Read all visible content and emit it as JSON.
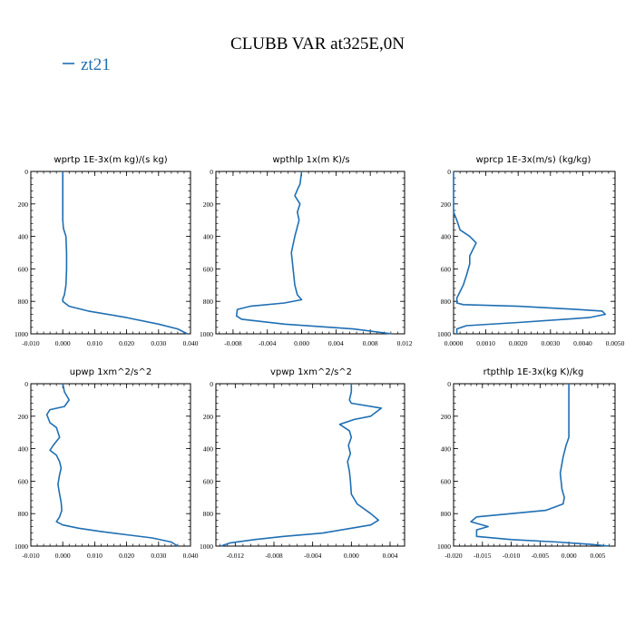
{
  "title": "CLUBB VAR at325E,0N",
  "legend": {
    "label": "zt21",
    "color": "#1f6fb3"
  },
  "chart_data": [
    {
      "type": "line",
      "title": "wprtp  1E-3x(m kg)/(s kg)",
      "xlim": [
        -0.01,
        0.04
      ],
      "ylim": [
        1000,
        0
      ],
      "xticks": [
        -0.01,
        0.0,
        0.01,
        0.02,
        0.03,
        0.04
      ],
      "xticklabels": [
        "-0.010",
        "0.000",
        "0.010",
        "0.020",
        "0.030",
        "0.040"
      ],
      "yticks": [
        0,
        200,
        400,
        600,
        800,
        1000
      ],
      "yticklabels": [
        "0",
        "200",
        "400",
        "600",
        "800",
        "1000"
      ],
      "series": [
        {
          "name": "zt21",
          "x": [
            0.0,
            0.0,
            0.0,
            0.0002,
            0.001,
            0.0012,
            0.0012,
            0.001,
            0.0005,
            0.0,
            0.0,
            0.002,
            0.008,
            0.02,
            0.03,
            0.036,
            0.039
          ],
          "y": [
            0,
            200,
            300,
            350,
            400,
            500,
            600,
            700,
            760,
            785,
            800,
            830,
            860,
            900,
            940,
            970,
            1000
          ]
        }
      ]
    },
    {
      "type": "line",
      "title": "wpthlp  1x(m K)/s",
      "xlim": [
        -0.01,
        0.012
      ],
      "ylim": [
        1000,
        0
      ],
      "xticks": [
        -0.008,
        -0.004,
        0.0,
        0.004,
        0.008,
        0.012
      ],
      "xticklabels": [
        "-0.008",
        "-0.004",
        "0.000",
        "0.004",
        "0.008",
        "0.012"
      ],
      "yticks": [
        0,
        200,
        400,
        600,
        800,
        1000
      ],
      "yticklabels": [
        "0",
        "200",
        "400",
        "600",
        "800",
        "1000"
      ],
      "series": [
        {
          "name": "zt21",
          "x": [
            0.0,
            -0.0002,
            -0.0004,
            -0.0008,
            -0.0002,
            -0.0005,
            -0.0003,
            -0.0008,
            -0.0012,
            -0.001,
            -0.0008,
            -0.0005,
            0.0,
            -0.002,
            -0.006,
            -0.0075,
            -0.0076,
            -0.007,
            -0.002,
            0.006,
            0.0105
          ],
          "y": [
            0,
            80,
            100,
            150,
            200,
            250,
            300,
            400,
            500,
            600,
            700,
            760,
            790,
            810,
            830,
            850,
            890,
            910,
            940,
            970,
            1000
          ]
        }
      ]
    },
    {
      "type": "line",
      "title": "wprcp  1E-3x(m/s) (kg/kg)",
      "xlim": [
        0.0,
        0.005
      ],
      "ylim": [
        1000,
        0
      ],
      "xticks": [
        0.0,
        0.001,
        0.002,
        0.003,
        0.004,
        0.005
      ],
      "xticklabels": [
        "0.0000",
        "0.0010",
        "0.0020",
        "0.0030",
        "0.0040",
        "0.0050"
      ],
      "yticks": [
        0,
        200,
        400,
        600,
        800,
        1000
      ],
      "yticklabels": [
        "0",
        "200",
        "400",
        "600",
        "800",
        "1000"
      ],
      "series": [
        {
          "name": "zt21",
          "x": [
            0.0,
            0.0,
            0.0,
            0.0001,
            0.0002,
            0.0005,
            0.0007,
            0.0006,
            0.0005,
            0.0005,
            0.0004,
            0.0003,
            0.0001,
            0.0001,
            0.0003,
            0.002,
            0.0038,
            0.0046,
            0.0047,
            0.0042,
            0.002,
            0.0004,
            0.0001,
            0.0001
          ],
          "y": [
            0,
            200,
            250,
            300,
            360,
            400,
            440,
            480,
            520,
            570,
            640,
            700,
            780,
            810,
            820,
            830,
            850,
            860,
            880,
            900,
            930,
            950,
            970,
            1000
          ]
        }
      ]
    },
    {
      "type": "line",
      "title": "upwp   1xm^2/s^2",
      "xlim": [
        -0.01,
        0.04
      ],
      "ylim": [
        1000,
        0
      ],
      "xticks": [
        -0.01,
        0.0,
        0.01,
        0.02,
        0.03,
        0.04
      ],
      "xticklabels": [
        "-0.010",
        "0.000",
        "0.010",
        "0.020",
        "0.030",
        "0.040"
      ],
      "yticks": [
        0,
        200,
        400,
        600,
        800,
        1000
      ],
      "yticklabels": [
        "0",
        "200",
        "400",
        "600",
        "800",
        "1000"
      ],
      "series": [
        {
          "name": "zt21",
          "x": [
            0.0,
            0.0005,
            0.002,
            0.0005,
            -0.004,
            -0.005,
            -0.004,
            -0.002,
            -0.001,
            -0.003,
            -0.004,
            -0.002,
            -0.001,
            -0.0005,
            -0.001,
            -0.0015,
            -0.001,
            -0.0005,
            -0.0003,
            -0.001,
            -0.002,
            0.0,
            0.005,
            0.012,
            0.02,
            0.028,
            0.034,
            0.036
          ],
          "y": [
            0,
            50,
            100,
            140,
            160,
            190,
            240,
            270,
            330,
            380,
            410,
            440,
            480,
            520,
            560,
            620,
            680,
            730,
            780,
            820,
            850,
            870,
            890,
            910,
            930,
            950,
            975,
            1000
          ]
        }
      ]
    },
    {
      "type": "line",
      "title": "vpwp   1xm^2/s^2",
      "xlim": [
        -0.014,
        0.0055
      ],
      "ylim": [
        1000,
        0
      ],
      "xticks": [
        -0.012,
        -0.008,
        -0.004,
        0.0,
        0.004
      ],
      "xticklabels": [
        "-0.012",
        "-0.008",
        "-0.004",
        "0.000",
        "0.004"
      ],
      "yticks": [
        0,
        200,
        400,
        600,
        800,
        1000
      ],
      "yticklabels": [
        "0",
        "200",
        "400",
        "600",
        "800",
        "1000"
      ],
      "series": [
        {
          "name": "zt21",
          "x": [
            0.0,
            0.0,
            -0.0002,
            0.0,
            0.0031,
            0.002,
            0.0003,
            -0.0012,
            -0.0002,
            0.0,
            -0.0003,
            -0.0001,
            -0.0004,
            -0.0002,
            -0.0001,
            0.0,
            0.0006,
            0.002,
            0.0028,
            0.002,
            0.0,
            -0.003,
            -0.007,
            -0.01,
            -0.0125,
            -0.0135
          ],
          "y": [
            0,
            50,
            100,
            120,
            150,
            200,
            220,
            250,
            290,
            330,
            380,
            430,
            480,
            540,
            600,
            680,
            740,
            800,
            840,
            870,
            890,
            920,
            940,
            960,
            980,
            1000
          ]
        }
      ]
    },
    {
      "type": "line",
      "title": "rtpthlp  1E-3x(kg K)/kg",
      "xlim": [
        -0.02,
        0.008
      ],
      "ylim": [
        1000,
        0
      ],
      "xticks": [
        -0.02,
        -0.015,
        -0.01,
        -0.005,
        0.0,
        0.005
      ],
      "xticklabels": [
        "-0.020",
        "-0.015",
        "-0.010",
        "-0.005",
        "0.000",
        "0.005"
      ],
      "yticks": [
        0,
        200,
        400,
        600,
        800,
        1000
      ],
      "yticklabels": [
        "0",
        "200",
        "400",
        "600",
        "800",
        "1000"
      ],
      "series": [
        {
          "name": "zt21",
          "x": [
            0.0,
            0.0,
            0.0,
            -0.0005,
            -0.001,
            -0.0015,
            -0.0012,
            -0.0008,
            -0.001,
            -0.004,
            -0.01,
            -0.016,
            -0.017,
            -0.014,
            -0.016,
            -0.016,
            -0.01,
            -0.002,
            0.004,
            0.007
          ],
          "y": [
            0,
            200,
            330,
            380,
            450,
            550,
            650,
            700,
            740,
            780,
            800,
            820,
            850,
            880,
            900,
            940,
            960,
            975,
            990,
            1000
          ]
        }
      ]
    }
  ]
}
